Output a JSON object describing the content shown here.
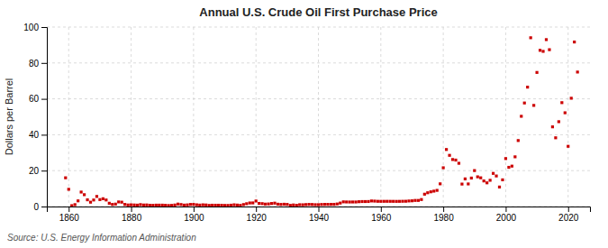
{
  "chart_data": {
    "type": "scatter",
    "title": "Annual U.S. Crude Oil First Purchase Price",
    "ylabel": "Dollars per Barrel",
    "source": "Source: U.S. Energy Information Administration",
    "color": "#cc0000",
    "marker": "square",
    "grid": true,
    "xlim": [
      1853,
      2027
    ],
    "xticks": [
      1860,
      1880,
      1900,
      1920,
      1940,
      1960,
      1980,
      2000,
      2020
    ],
    "ylim": [
      0,
      100
    ],
    "yticks": [
      0,
      20,
      40,
      60,
      80,
      100
    ],
    "x": [
      1859,
      1860,
      1861,
      1862,
      1863,
      1864,
      1865,
      1866,
      1867,
      1868,
      1869,
      1870,
      1871,
      1872,
      1873,
      1874,
      1875,
      1876,
      1877,
      1878,
      1879,
      1880,
      1881,
      1882,
      1883,
      1884,
      1885,
      1886,
      1887,
      1888,
      1889,
      1890,
      1891,
      1892,
      1893,
      1894,
      1895,
      1896,
      1897,
      1898,
      1899,
      1900,
      1901,
      1902,
      1903,
      1904,
      1905,
      1906,
      1907,
      1908,
      1909,
      1910,
      1911,
      1912,
      1913,
      1914,
      1915,
      1916,
      1917,
      1918,
      1919,
      1920,
      1921,
      1922,
      1923,
      1924,
      1925,
      1926,
      1927,
      1928,
      1929,
      1930,
      1931,
      1932,
      1933,
      1934,
      1935,
      1936,
      1937,
      1938,
      1939,
      1940,
      1941,
      1942,
      1943,
      1944,
      1945,
      1946,
      1947,
      1948,
      1949,
      1950,
      1951,
      1952,
      1953,
      1954,
      1955,
      1956,
      1957,
      1958,
      1959,
      1960,
      1961,
      1962,
      1963,
      1964,
      1965,
      1966,
      1967,
      1968,
      1969,
      1970,
      1971,
      1972,
      1973,
      1974,
      1975,
      1976,
      1977,
      1978,
      1979,
      1980,
      1981,
      1982,
      1983,
      1984,
      1985,
      1986,
      1987,
      1988,
      1989,
      1990,
      1991,
      1992,
      1993,
      1994,
      1995,
      1996,
      1997,
      1998,
      1999,
      2000,
      2001,
      2002,
      2003,
      2004,
      2005,
      2006,
      2007,
      2008,
      2009,
      2010,
      2011,
      2012,
      2013,
      2014,
      2015,
      2016,
      2017,
      2018,
      2019,
      2020,
      2021,
      2022,
      2023
    ],
    "values": [
      16.0,
      9.59,
      0.49,
      1.05,
      3.15,
      8.06,
      6.59,
      3.74,
      2.41,
      3.63,
      5.62,
      3.86,
      4.34,
      3.64,
      1.83,
      1.17,
      1.35,
      2.56,
      2.42,
      1.17,
      0.86,
      0.95,
      0.86,
      0.78,
      1.06,
      0.84,
      0.88,
      0.71,
      0.67,
      0.77,
      0.77,
      0.77,
      0.67,
      0.56,
      0.64,
      0.84,
      1.36,
      1.11,
      0.79,
      0.91,
      1.16,
      1.19,
      0.96,
      0.8,
      0.94,
      0.86,
      0.62,
      0.73,
      0.72,
      0.72,
      0.7,
      0.61,
      0.61,
      0.74,
      0.95,
      0.81,
      0.64,
      1.1,
      1.56,
      1.98,
      2.01,
      3.07,
      1.73,
      1.61,
      1.34,
      1.43,
      1.68,
      1.88,
      1.3,
      1.17,
      1.27,
      1.19,
      0.65,
      0.87,
      0.67,
      1.0,
      0.97,
      1.09,
      1.18,
      1.13,
      1.02,
      1.02,
      1.14,
      1.19,
      1.19,
      1.21,
      1.22,
      1.41,
      1.93,
      2.6,
      2.54,
      2.51,
      2.53,
      2.53,
      2.68,
      2.77,
      2.77,
      2.79,
      3.09,
      3.01,
      2.9,
      2.88,
      2.89,
      2.9,
      2.89,
      2.88,
      2.86,
      2.88,
      2.92,
      2.94,
      3.09,
      3.18,
      3.39,
      3.39,
      3.89,
      6.87,
      7.67,
      8.19,
      8.57,
      9.0,
      12.64,
      21.59,
      31.77,
      28.52,
      26.19,
      25.88,
      24.09,
      12.51,
      15.4,
      12.58,
      15.86,
      20.03,
      16.54,
      15.99,
      14.25,
      13.19,
      14.62,
      18.46,
      17.02,
      10.87,
      14.87,
      26.72,
      21.84,
      22.51,
      27.69,
      36.77,
      50.28,
      57.69,
      66.52,
      94.04,
      56.35,
      74.71,
      87.04,
      86.46,
      93.0,
      87.39,
      44.39,
      38.29,
      47.27,
      57.88,
      52.23,
      33.55,
      60.34,
      91.67,
      74.93
    ]
  }
}
